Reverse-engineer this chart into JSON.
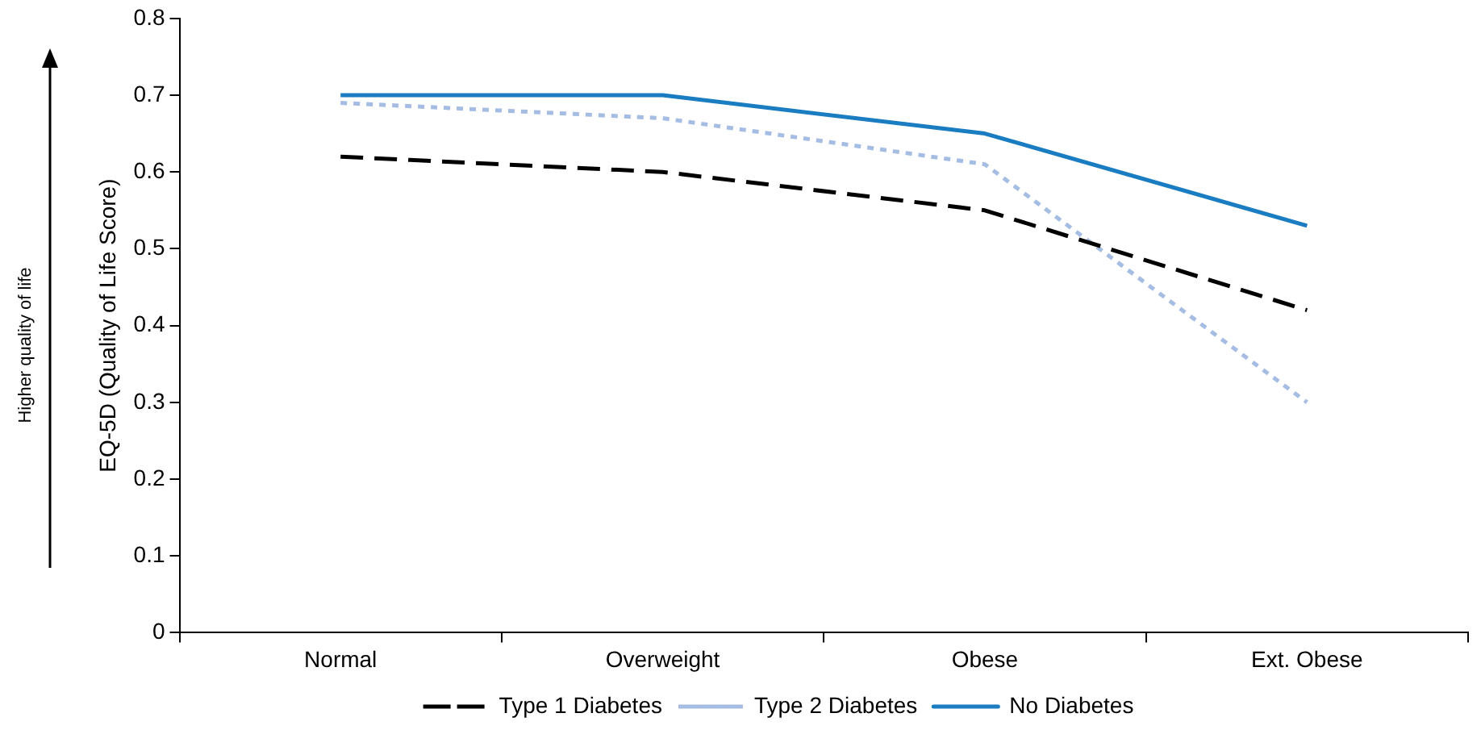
{
  "chart_data": {
    "type": "line",
    "ylabel": "EQ-5D (Quality of Life Score)",
    "annotations": [
      "Higher quality of life"
    ],
    "categories": [
      "Normal",
      "Overweight",
      "Obese",
      "Ext. Obese"
    ],
    "series": [
      {
        "name": "Type 1 Diabetes",
        "color": "#000000",
        "line_style": "dashed",
        "values": [
          0.62,
          0.6,
          0.55,
          0.42
        ]
      },
      {
        "name": "Type 2 Diabetes",
        "color": "#a6bde3",
        "line_style": "dotted",
        "values": [
          0.69,
          0.67,
          0.61,
          0.3
        ]
      },
      {
        "name": "No Diabetes",
        "color": "#1a7cc1",
        "line_style": "solid",
        "values": [
          0.7,
          0.7,
          0.65,
          0.53
        ]
      }
    ],
    "ylim": [
      0,
      0.8
    ],
    "yticks": [
      0,
      0.1,
      0.2,
      0.3,
      0.4,
      0.5,
      0.6,
      0.7,
      0.8
    ],
    "legend": "bottom",
    "marker": "none"
  }
}
